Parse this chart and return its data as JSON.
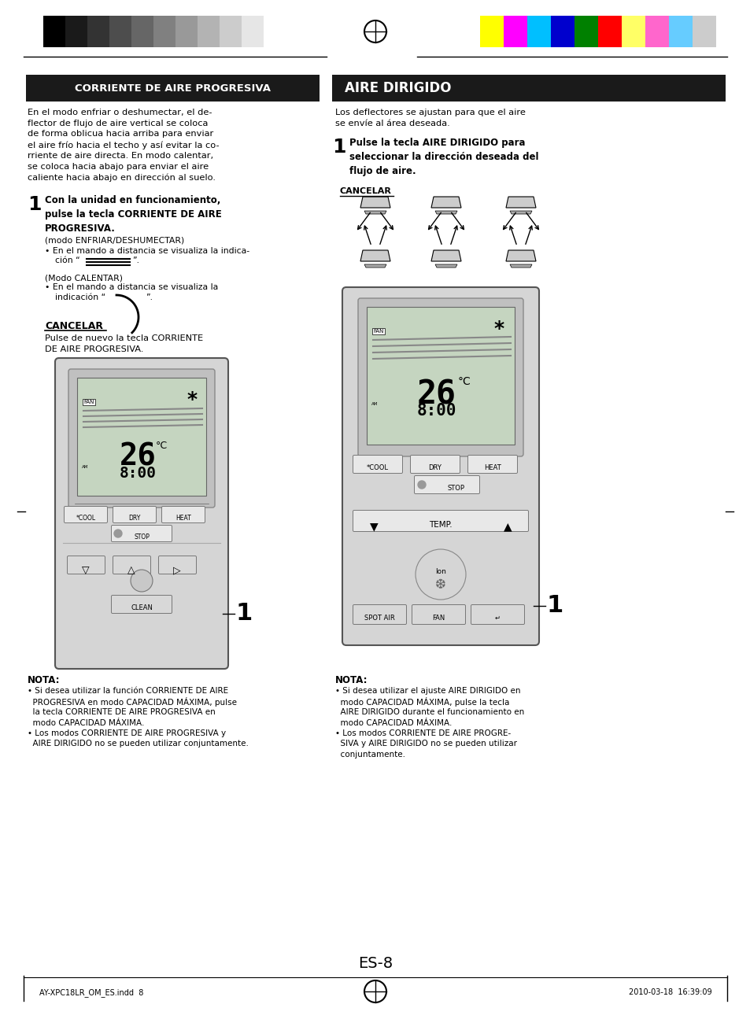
{
  "page_bg": "#ffffff",
  "page_number": "ES-8",
  "footer_left": "AY-XPC18LR_OM_ES.indd  8",
  "footer_right": "2010-03-18  16:39:09",
  "header_colors_left": [
    "#000000",
    "#1a1a1a",
    "#333333",
    "#4d4d4d",
    "#666666",
    "#808080",
    "#999999",
    "#b3b3b3",
    "#cccccc",
    "#e6e6e6",
    "#ffffff"
  ],
  "header_colors_right": [
    "#ffff00",
    "#ff00ff",
    "#00bfff",
    "#0000cd",
    "#008000",
    "#ff0000",
    "#ffff66",
    "#ff66cc",
    "#66ccff",
    "#cccccc"
  ],
  "left_header": "CORRIENTE DE AIRE PROGRESIVA",
  "right_header": "AIRE DIRIGIDO",
  "header_bg": "#1a1a1a",
  "header_fg": "#ffffff",
  "cancelar_label": "CANCELAR",
  "nota_left_head": "NOTA:",
  "nota_right_head": "NOTA:"
}
